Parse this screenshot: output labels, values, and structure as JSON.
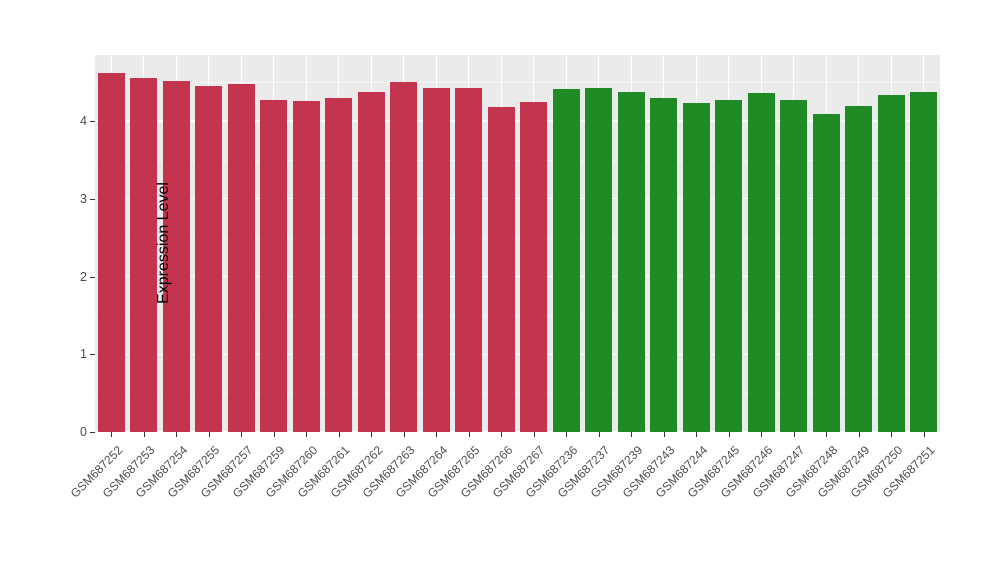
{
  "chart_data": {
    "type": "bar",
    "title": "",
    "xlabel": "",
    "ylabel": "Expression Level",
    "ylim": [
      0,
      4.85
    ],
    "yticks": [
      0,
      1,
      2,
      3,
      4
    ],
    "yticks_minor": [
      0.5,
      1.5,
      2.5,
      3.5,
      4.5
    ],
    "grid": true,
    "legend": "none",
    "panel_bg": "#EBEBEB",
    "grid_color": "#FFFFFF",
    "categories": [
      "GSM687252",
      "GSM687253",
      "GSM687254",
      "GSM687255",
      "GSM687257",
      "GSM687259",
      "GSM687260",
      "GSM687261",
      "GSM687262",
      "GSM687263",
      "GSM687264",
      "GSM687265",
      "GSM687266",
      "GSM687267",
      "GSM687236",
      "GSM687237",
      "GSM687239",
      "GSM687243",
      "GSM687244",
      "GSM687245",
      "GSM687246",
      "GSM687247",
      "GSM687248",
      "GSM687249",
      "GSM687250",
      "GSM687251"
    ],
    "values": [
      4.62,
      4.55,
      4.52,
      4.45,
      4.48,
      4.27,
      4.26,
      4.3,
      4.38,
      4.5,
      4.42,
      4.43,
      4.18,
      4.24,
      4.41,
      4.43,
      4.38,
      4.3,
      4.23,
      4.27,
      4.36,
      4.27,
      4.09,
      4.19,
      4.33,
      4.38
    ],
    "groups": [
      "group1",
      "group1",
      "group1",
      "group1",
      "group1",
      "group1",
      "group1",
      "group1",
      "group1",
      "group1",
      "group1",
      "group1",
      "group1",
      "group1",
      "group2",
      "group2",
      "group2",
      "group2",
      "group2",
      "group2",
      "group2",
      "group2",
      "group2",
      "group2",
      "group2",
      "group2"
    ],
    "group_colors": {
      "group1": "#C5344F",
      "group2": "#1E8B24"
    }
  }
}
